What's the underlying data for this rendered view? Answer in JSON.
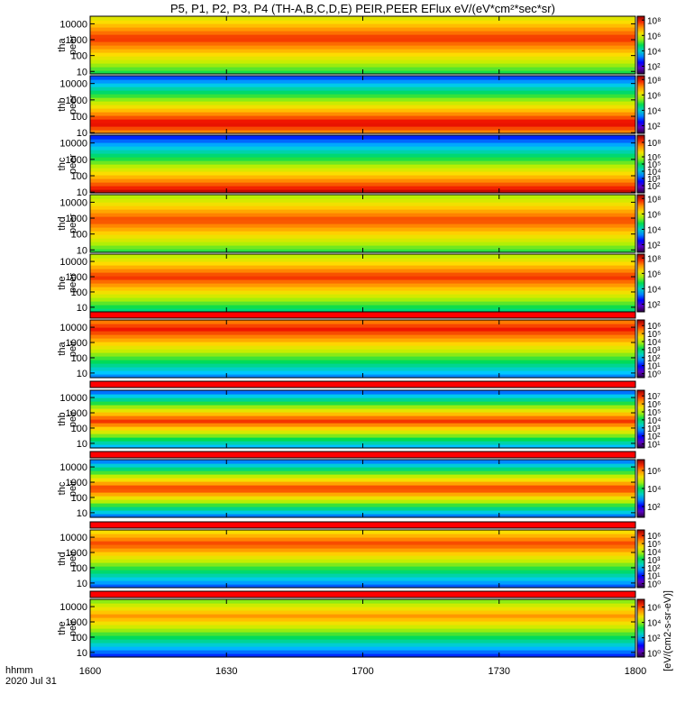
{
  "title": "P5, P1, P2, P3, P4 (TH-A,B,C,D,E) PEIR,PEER EFlux eV/(eV*cm²*sec*sr)",
  "x_axis": {
    "row_label": "hhmm",
    "date": "2020 Jul 31"
  },
  "colorbar_title": "[eV/(cm2-s-sr-eV)]",
  "colors": {
    "frame": "#000000",
    "separator": "#ff0000"
  },
  "chart_data": [
    {
      "type": "heatmap",
      "probe": "tha",
      "species": "peer",
      "ylabel": [
        "tha",
        "peer"
      ],
      "y_ticks": [
        "10000",
        "1000",
        "100",
        "10"
      ],
      "y_tick_values": [
        10000,
        1000,
        100,
        10
      ],
      "yscale": "log",
      "ylim": [
        7,
        30000
      ],
      "colorbar_ticks": [
        "10⁸",
        "10⁶",
        "10⁴",
        "10²"
      ],
      "colorbar_tick_values": [
        8,
        6,
        4,
        2
      ],
      "colorbar_range": [
        1,
        8.5
      ],
      "x_ticks": [
        "1600",
        "1630",
        "1700",
        "1730",
        "1800"
      ],
      "x_tick_values": [
        0,
        30,
        60,
        90,
        120
      ]
    },
    {
      "type": "heatmap",
      "probe": "thb",
      "species": "peer",
      "ylabel": [
        "thb",
        "peer"
      ],
      "y_ticks": [
        "10000",
        "1000",
        "100",
        "10"
      ],
      "y_tick_values": [
        10000,
        1000,
        100,
        10
      ],
      "yscale": "log",
      "ylim": [
        9,
        30000
      ],
      "colorbar_ticks": [
        "10⁸",
        "10⁶",
        "10⁴",
        "10²"
      ],
      "colorbar_tick_values": [
        8,
        6,
        4,
        2
      ],
      "colorbar_range": [
        1,
        8.5
      ],
      "x_ticks": [
        "1600",
        "1630",
        "1700",
        "1730",
        "1800"
      ],
      "x_tick_values": [
        0,
        30,
        60,
        90,
        120
      ]
    },
    {
      "type": "heatmap",
      "probe": "thc",
      "species": "peer",
      "ylabel": [
        "thc",
        "peer"
      ],
      "y_ticks": [
        "10000",
        "1000",
        "100",
        "10"
      ],
      "y_tick_values": [
        10000,
        1000,
        100,
        10
      ],
      "yscale": "log",
      "ylim": [
        9,
        30000
      ],
      "colorbar_ticks": [
        "10⁸",
        "10⁶",
        "10⁵",
        "10⁴",
        "10³",
        "10²"
      ],
      "colorbar_tick_values": [
        8,
        6,
        5,
        4,
        3,
        2
      ],
      "colorbar_range": [
        1,
        9
      ],
      "x_ticks": [
        "1600",
        "1630",
        "1700",
        "1730",
        "1800"
      ],
      "x_tick_values": [
        0,
        30,
        60,
        90,
        120
      ]
    },
    {
      "type": "heatmap",
      "probe": "thd",
      "species": "peer",
      "ylabel": [
        "thd",
        "peer"
      ],
      "y_ticks": [
        "10000",
        "1000",
        "100",
        "10"
      ],
      "y_tick_values": [
        10000,
        1000,
        100,
        10
      ],
      "yscale": "log",
      "ylim": [
        7,
        30000
      ],
      "colorbar_ticks": [
        "10⁸",
        "10⁶",
        "10⁴",
        "10²"
      ],
      "colorbar_tick_values": [
        8,
        6,
        4,
        2
      ],
      "colorbar_range": [
        1,
        8.5
      ],
      "x_ticks": [
        "1600",
        "1630",
        "1700",
        "1730",
        "1800"
      ],
      "x_tick_values": [
        0,
        30,
        60,
        90,
        120
      ]
    },
    {
      "type": "heatmap",
      "probe": "the",
      "species": "peer",
      "ylabel": [
        "the",
        "peer"
      ],
      "y_ticks": [
        "10000",
        "1000",
        "100",
        "10"
      ],
      "y_tick_values": [
        10000,
        1000,
        100,
        10
      ],
      "yscale": "log",
      "ylim": [
        5,
        30000
      ],
      "colorbar_ticks": [
        "10⁸",
        "10⁶",
        "10⁴",
        "10²"
      ],
      "colorbar_tick_values": [
        8,
        6,
        4,
        2
      ],
      "colorbar_range": [
        1,
        8.5
      ],
      "x_ticks": [
        "1600",
        "1630",
        "1700",
        "1730",
        "1800"
      ],
      "x_tick_values": [
        0,
        30,
        60,
        90,
        120
      ]
    },
    {
      "type": "heatmap",
      "probe": "tha",
      "species": "peir",
      "ylabel": [
        "tha",
        "peir"
      ],
      "y_ticks": [
        "10000",
        "1000",
        "100",
        "10"
      ],
      "y_tick_values": [
        10000,
        1000,
        100,
        10
      ],
      "yscale": "log",
      "ylim": [
        5,
        30000
      ],
      "colorbar_ticks": [
        "10⁶",
        "10⁵",
        "10⁴",
        "10³",
        "10²",
        "10¹",
        "10⁰"
      ],
      "colorbar_tick_values": [
        6,
        5,
        4,
        3,
        2,
        1,
        0
      ],
      "colorbar_range": [
        -0.5,
        6.7
      ],
      "x_ticks": [
        "1600",
        "1630",
        "1700",
        "1730",
        "1800"
      ],
      "x_tick_values": [
        0,
        30,
        60,
        90,
        120
      ]
    },
    {
      "type": "heatmap",
      "probe": "thb",
      "species": "peir",
      "ylabel": [
        "thb",
        "peir"
      ],
      "y_ticks": [
        "10000",
        "1000",
        "100",
        "10"
      ],
      "y_tick_values": [
        10000,
        1000,
        100,
        10
      ],
      "yscale": "log",
      "ylim": [
        5,
        30000
      ],
      "colorbar_ticks": [
        "10⁷",
        "10⁶",
        "10⁵",
        "10⁴",
        "10³",
        "10²",
        "10¹"
      ],
      "colorbar_tick_values": [
        7,
        6,
        5,
        4,
        3,
        2,
        1
      ],
      "colorbar_range": [
        0.5,
        7.7
      ],
      "x_ticks": [
        "1600",
        "1630",
        "1700",
        "1730",
        "1800"
      ],
      "x_tick_values": [
        0,
        30,
        60,
        90,
        120
      ]
    },
    {
      "type": "heatmap",
      "probe": "thc",
      "species": "peir",
      "ylabel": [
        "thc",
        "peir"
      ],
      "y_ticks": [
        "10000",
        "1000",
        "100",
        "10"
      ],
      "y_tick_values": [
        10000,
        1000,
        100,
        10
      ],
      "yscale": "log",
      "ylim": [
        5,
        30000
      ],
      "colorbar_ticks": [
        "10⁶",
        "10⁴",
        "10²"
      ],
      "colorbar_tick_values": [
        6,
        4,
        2
      ],
      "colorbar_range": [
        0.8,
        7.2
      ],
      "x_ticks": [
        "1600",
        "1630",
        "1700",
        "1730",
        "1800"
      ],
      "x_tick_values": [
        0,
        30,
        60,
        90,
        120
      ]
    },
    {
      "type": "heatmap",
      "probe": "thd",
      "species": "peir",
      "ylabel": [
        "thd",
        "peir"
      ],
      "y_ticks": [
        "10000",
        "1000",
        "100",
        "10"
      ],
      "y_tick_values": [
        10000,
        1000,
        100,
        10
      ],
      "yscale": "log",
      "ylim": [
        5,
        30000
      ],
      "colorbar_ticks": [
        "10⁶",
        "10⁵",
        "10⁴",
        "10³",
        "10²",
        "10¹",
        "10⁰"
      ],
      "colorbar_tick_values": [
        6,
        5,
        4,
        3,
        2,
        1,
        0
      ],
      "colorbar_range": [
        -0.5,
        6.7
      ],
      "x_ticks": [
        "1600",
        "1630",
        "1700",
        "1730",
        "1800"
      ],
      "x_tick_values": [
        0,
        30,
        60,
        90,
        120
      ]
    },
    {
      "type": "heatmap",
      "probe": "the",
      "species": "peir",
      "ylabel": [
        "the",
        "peir"
      ],
      "y_ticks": [
        "10000",
        "1000",
        "100",
        "10"
      ],
      "y_tick_values": [
        10000,
        1000,
        100,
        10
      ],
      "yscale": "log",
      "ylim": [
        5,
        30000
      ],
      "colorbar_ticks": [
        "10⁶",
        "10⁴",
        "10²",
        "10⁰"
      ],
      "colorbar_tick_values": [
        6,
        4,
        2,
        0
      ],
      "colorbar_range": [
        -0.5,
        7
      ],
      "x_ticks": [
        "1600",
        "1630",
        "1700",
        "1730",
        "1800"
      ],
      "x_tick_values": [
        0,
        30,
        60,
        90,
        120
      ]
    }
  ]
}
